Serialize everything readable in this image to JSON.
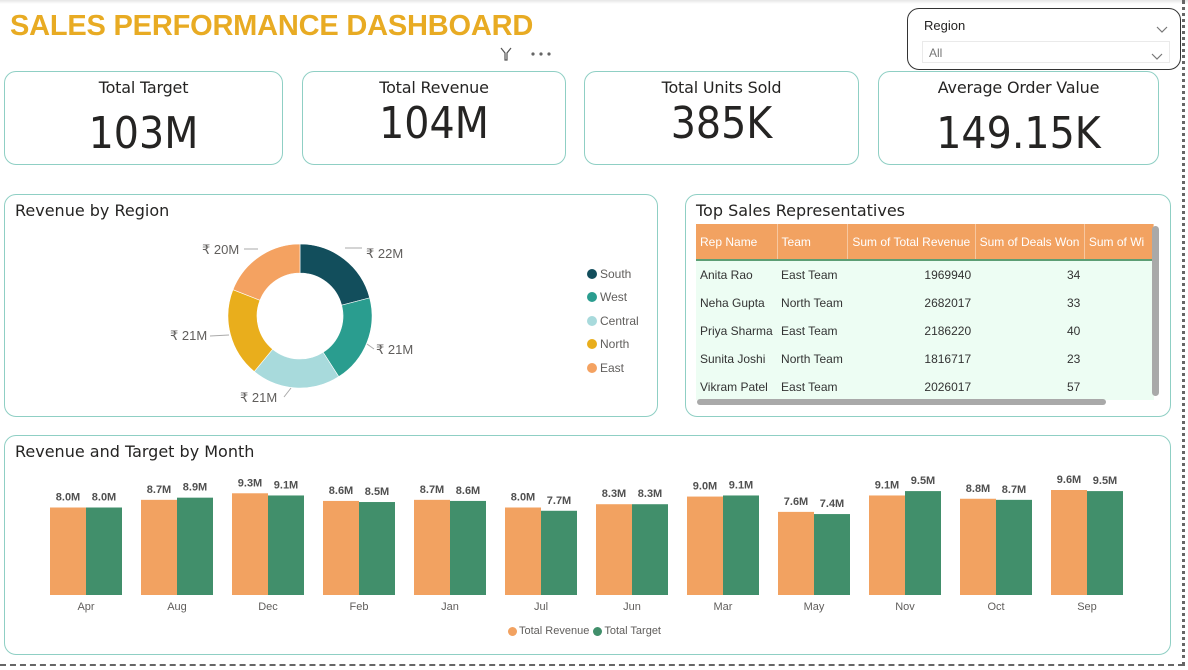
{
  "header": {
    "title": "SALES PERFORMANCE DASHBOARD",
    "filter_icon": "filter-icon",
    "more_icon": "more-options-icon"
  },
  "slicer": {
    "title": "Region",
    "selected": "All"
  },
  "kpis": [
    {
      "label": "Total Target",
      "value": "103M"
    },
    {
      "label": "Total Revenue",
      "value": "104M"
    },
    {
      "label": "Total Units Sold",
      "value": "385K"
    },
    {
      "label": "Average Order Value",
      "value": "149.15K"
    }
  ],
  "region_panel": {
    "title": "Revenue by Region"
  },
  "reps_panel": {
    "title": "Top Sales Representatives",
    "columns": [
      "Rep Name",
      "Team",
      "Sum of Total Revenue",
      "Sum of Deals Won",
      "Sum of Wi"
    ],
    "rows": [
      [
        "Anita Rao",
        "East Team",
        "1969940",
        "34",
        ""
      ],
      [
        "Neha Gupta",
        "North Team",
        "2682017",
        "33",
        ""
      ],
      [
        "Priya Sharma",
        "East Team",
        "2186220",
        "40",
        ""
      ],
      [
        "Sunita Joshi",
        "North Team",
        "1816717",
        "23",
        ""
      ],
      [
        "Vikram Patel",
        "East Team",
        "2026017",
        "57",
        ""
      ]
    ]
  },
  "month_panel": {
    "title": "Revenue and Target by Month"
  },
  "chart_data": [
    {
      "type": "pie",
      "title": "Revenue by Region",
      "donut": true,
      "categories": [
        "South",
        "West",
        "Central",
        "North",
        "East"
      ],
      "values": [
        22,
        21,
        21,
        21,
        20
      ],
      "labels": [
        "₹ 22M",
        "₹ 21M",
        "₹ 21M",
        "₹ 21M",
        "₹ 20M"
      ],
      "unit": "₹ M",
      "colors": [
        "#124e5c",
        "#2a9d8f",
        "#a8dadc",
        "#e9ae1c",
        "#f4a261"
      ],
      "legend": "right"
    },
    {
      "type": "bar",
      "title": "Revenue and Target by Month",
      "categories": [
        "Apr",
        "Aug",
        "Dec",
        "Feb",
        "Jan",
        "Jul",
        "Jun",
        "Mar",
        "May",
        "Nov",
        "Oct",
        "Sep"
      ],
      "series": [
        {
          "name": "Total Revenue",
          "color": "#f2a261",
          "values": [
            8.0,
            8.7,
            9.3,
            8.6,
            8.7,
            8.0,
            8.3,
            9.0,
            7.6,
            9.1,
            8.8,
            9.6
          ],
          "labels": [
            "8.0M",
            "8.7M",
            "9.3M",
            "8.6M",
            "8.7M",
            "8.0M",
            "8.3M",
            "9.0M",
            "7.6M",
            "9.1M",
            "8.8M",
            "9.6M"
          ]
        },
        {
          "name": "Total Target",
          "color": "#418f6b",
          "values": [
            8.0,
            8.9,
            9.1,
            8.5,
            8.6,
            7.7,
            8.3,
            9.1,
            7.4,
            9.5,
            8.7,
            9.5
          ],
          "labels": [
            "8.0M",
            "8.9M",
            "9.1M",
            "8.5M",
            "8.6M",
            "7.7M",
            "8.3M",
            "9.1M",
            "7.4M",
            "9.5M",
            "8.7M",
            "9.5M"
          ]
        }
      ],
      "xlabel": "",
      "ylabel": "",
      "ylim": [
        0,
        10
      ],
      "grid": false,
      "legend": "bottom-center"
    }
  ]
}
